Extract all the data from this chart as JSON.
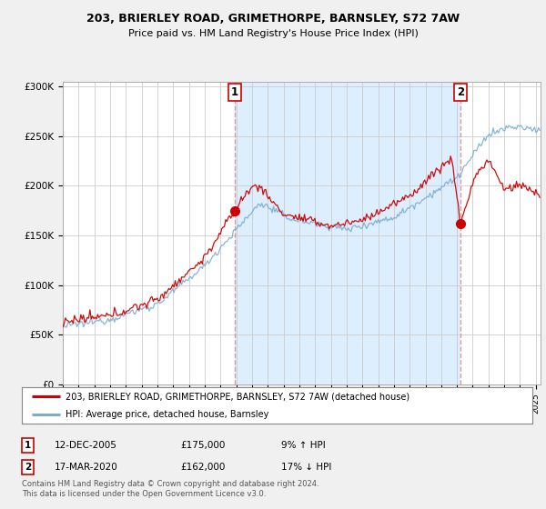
{
  "title1": "203, BRIERLEY ROAD, GRIMETHORPE, BARNSLEY, S72 7AW",
  "title2": "Price paid vs. HM Land Registry's House Price Index (HPI)",
  "ylabel_ticks": [
    "£0",
    "£50K",
    "£100K",
    "£150K",
    "£200K",
    "£250K",
    "£300K"
  ],
  "ytick_values": [
    0,
    50000,
    100000,
    150000,
    200000,
    250000,
    300000
  ],
  "ylim": [
    0,
    305000
  ],
  "legend_line1": "203, BRIERLEY ROAD, GRIMETHORPE, BARNSLEY, S72 7AW (detached house)",
  "legend_line2": "HPI: Average price, detached house, Barnsley",
  "annotation1_date": "12-DEC-2005",
  "annotation1_price": "£175,000",
  "annotation1_hpi": "9% ↑ HPI",
  "annotation2_date": "17-MAR-2020",
  "annotation2_price": "£162,000",
  "annotation2_hpi": "17% ↓ HPI",
  "footnote": "Contains HM Land Registry data © Crown copyright and database right 2024.\nThis data is licensed under the Open Government Licence v3.0.",
  "red_line_color": "#cc0000",
  "blue_line_color": "#7aadd4",
  "dashed_line_color": "#dd8888",
  "shading_color": "#ddeeff",
  "background_color": "#f0f0f0",
  "plot_bg_color": "#ffffff",
  "grid_color": "#cccccc",
  "sale1_x": 2005.92,
  "sale1_y": 175000,
  "sale2_x": 2020.21,
  "sale2_y": 162000,
  "xlim_left": 1995,
  "xlim_right": 2025.3
}
